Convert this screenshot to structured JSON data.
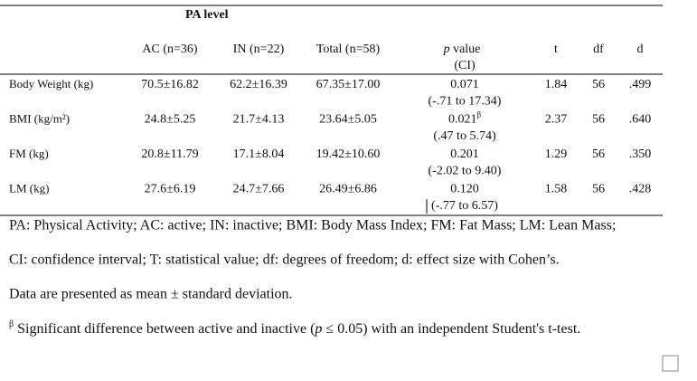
{
  "header": {
    "title": "PA level",
    "columns": [
      "AC (n=36)",
      "IN (n=22)",
      "Total (n=58)"
    ],
    "p_italic": "p",
    "p_rest": " value",
    "ci": "(CI)",
    "t": "t",
    "df": "df",
    "d": "d"
  },
  "rows": [
    {
      "label": "Body Weight (kg)",
      "ac": "70.5±16.82",
      "in": "62.2±16.39",
      "total": "67.35±17.00",
      "p": "0.071",
      "ci": "(-.71 to 17.34)",
      "t": "1.84",
      "df": "56",
      "d": ".499"
    },
    {
      "label": "BMI (kg/m²)",
      "ac": "24.8±5.25",
      "in": "21.7±4.13",
      "total": "23.64±5.05",
      "p": "0.021",
      "sup": "β",
      "ci": "(.47 to 5.74)",
      "t": "2.37",
      "df": "56",
      "d": ".640"
    },
    {
      "label": "FM (kg)",
      "ac": "20.8±11.79",
      "in": "17.1±8.04",
      "total": "19.42±10.60",
      "p": "0.201",
      "ci": "(-2.02 to 9.40)",
      "t": "1.29",
      "df": "56",
      "d": ".350"
    },
    {
      "label": "LM (kg)",
      "ac": "27.6±6.19",
      "in": "24.7±7.66",
      "total": "26.49±6.86",
      "p": "0.120",
      "ci": "(-.77 to 6.57)",
      "t": "1.58",
      "df": "56",
      "d": ".428"
    }
  ],
  "notes": [
    "PA: Physical Activity; AC: active; IN: inactive; BMI: Body Mass Index; FM: Fat Mass; LM: Lean Mass;",
    "CI: confidence interval; T: statistical value; df: degrees of freedom; d: effect size with Cohen’s.",
    "Data are presented as mean ± standard deviation."
  ],
  "last_note": {
    "sup": "β",
    "text1": " Significant difference between active and inactive (",
    "p": "p",
    "text2": " ≤ 0.05) with an independent Student's t-test."
  }
}
